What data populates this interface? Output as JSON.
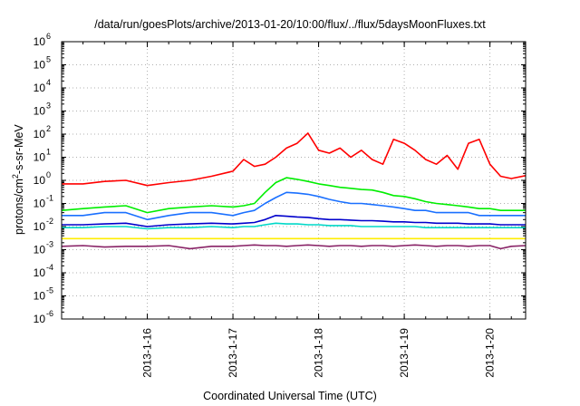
{
  "chart_data": {
    "type": "line",
    "title": "/data/run/goesPlots/archive/2013-01-20/10:00/flux/../flux/5daysMoonFluxes.txt",
    "xlabel": "Coordinated Universal Time (UTC)",
    "ylabel_prefix": "protons/cm",
    "ylabel_sup": "2",
    "ylabel_suffix": "-s-sr-MeV",
    "yscale": "log",
    "ylim": [
      1e-06,
      1000000.0
    ],
    "ytick_exponents": [
      -6,
      -5,
      -4,
      -3,
      -2,
      -1,
      0,
      1,
      2,
      3,
      4,
      5,
      6
    ],
    "ytick_base": "10",
    "xlim": [
      "2013-01-15T00:00",
      "2013-01-20T10:00"
    ],
    "xtick_labels": [
      "2013-1-16",
      "2013-1-17",
      "2013-1-18",
      "2013-1-19",
      "2013-1-20"
    ],
    "xtick_dates": [
      "2013-01-16T00:00",
      "2013-01-17T00:00",
      "2013-01-18T00:00",
      "2013-01-19T00:00",
      "2013-01-20T00:00"
    ],
    "grid": true,
    "x": [
      "2013-01-15T00:00",
      "2013-01-15T06:00",
      "2013-01-15T12:00",
      "2013-01-15T18:00",
      "2013-01-16T00:00",
      "2013-01-16T06:00",
      "2013-01-16T12:00",
      "2013-01-16T18:00",
      "2013-01-17T00:00",
      "2013-01-17T03:00",
      "2013-01-17T06:00",
      "2013-01-17T09:00",
      "2013-01-17T12:00",
      "2013-01-17T15:00",
      "2013-01-17T18:00",
      "2013-01-17T21:00",
      "2013-01-18T00:00",
      "2013-01-18T03:00",
      "2013-01-18T06:00",
      "2013-01-18T09:00",
      "2013-01-18T12:00",
      "2013-01-18T15:00",
      "2013-01-18T18:00",
      "2013-01-18T21:00",
      "2013-01-19T00:00",
      "2013-01-19T03:00",
      "2013-01-19T06:00",
      "2013-01-19T09:00",
      "2013-01-19T12:00",
      "2013-01-19T15:00",
      "2013-01-19T18:00",
      "2013-01-19T21:00",
      "2013-01-20T00:00",
      "2013-01-20T03:00",
      "2013-01-20T06:00",
      "2013-01-20T10:00"
    ],
    "series": [
      {
        "color": "#ff0000",
        "values": [
          0.7,
          0.7,
          0.9,
          1.0,
          0.6,
          0.8,
          1.0,
          1.5,
          2.5,
          8,
          4,
          5,
          10,
          25,
          40,
          110,
          20,
          15,
          25,
          10,
          20,
          8,
          5,
          60,
          40,
          20,
          8,
          5,
          12,
          3,
          40,
          60,
          5,
          1.5,
          1.2,
          1.6
        ]
      },
      {
        "color": "#00ee00",
        "values": [
          0.05,
          0.06,
          0.07,
          0.08,
          0.04,
          0.06,
          0.07,
          0.08,
          0.07,
          0.08,
          0.1,
          0.3,
          0.8,
          1.3,
          1.1,
          0.9,
          0.7,
          0.6,
          0.5,
          0.45,
          0.4,
          0.38,
          0.3,
          0.22,
          0.2,
          0.16,
          0.12,
          0.1,
          0.09,
          0.08,
          0.07,
          0.06,
          0.06,
          0.05,
          0.05,
          0.05
        ]
      },
      {
        "color": "#1a70ff",
        "values": [
          0.03,
          0.03,
          0.04,
          0.04,
          0.02,
          0.03,
          0.04,
          0.04,
          0.03,
          0.04,
          0.05,
          0.1,
          0.18,
          0.3,
          0.28,
          0.25,
          0.2,
          0.15,
          0.12,
          0.1,
          0.1,
          0.09,
          0.08,
          0.07,
          0.06,
          0.05,
          0.05,
          0.04,
          0.04,
          0.04,
          0.04,
          0.03,
          0.03,
          0.03,
          0.03,
          0.03
        ]
      },
      {
        "color": "#0000cc",
        "values": [
          0.012,
          0.012,
          0.013,
          0.014,
          0.01,
          0.012,
          0.013,
          0.014,
          0.013,
          0.014,
          0.015,
          0.02,
          0.03,
          0.028,
          0.026,
          0.025,
          0.022,
          0.02,
          0.02,
          0.019,
          0.018,
          0.018,
          0.017,
          0.016,
          0.016,
          0.015,
          0.015,
          0.014,
          0.014,
          0.014,
          0.013,
          0.013,
          0.013,
          0.012,
          0.012,
          0.012
        ]
      },
      {
        "color": "#00d8c8",
        "values": [
          0.009,
          0.009,
          0.01,
          0.01,
          0.008,
          0.009,
          0.009,
          0.01,
          0.009,
          0.01,
          0.01,
          0.012,
          0.014,
          0.013,
          0.013,
          0.012,
          0.012,
          0.011,
          0.011,
          0.011,
          0.01,
          0.01,
          0.01,
          0.01,
          0.01,
          0.01,
          0.009,
          0.009,
          0.009,
          0.009,
          0.009,
          0.009,
          0.009,
          0.009,
          0.009,
          0.009
        ]
      },
      {
        "color": "#ffee00",
        "values": [
          0.003,
          0.003,
          0.003,
          0.003,
          0.003,
          0.003,
          0.003,
          0.003,
          0.003,
          0.003,
          0.003,
          0.003,
          0.003,
          0.003,
          0.003,
          0.003,
          0.003,
          0.003,
          0.003,
          0.003,
          0.003,
          0.003,
          0.003,
          0.003,
          0.003,
          0.003,
          0.003,
          0.003,
          0.003,
          0.003,
          0.003,
          0.003,
          0.003,
          0.003,
          0.003,
          0.003
        ]
      },
      {
        "color": "#882266",
        "values": [
          0.0014,
          0.0015,
          0.0013,
          0.0014,
          0.0014,
          0.0015,
          0.0011,
          0.0014,
          0.0014,
          0.0015,
          0.0016,
          0.0015,
          0.0015,
          0.0014,
          0.0015,
          0.0016,
          0.0015,
          0.0014,
          0.0015,
          0.0015,
          0.0014,
          0.0015,
          0.0015,
          0.0014,
          0.0015,
          0.0016,
          0.0015,
          0.0014,
          0.0015,
          0.0015,
          0.0014,
          0.0015,
          0.0015,
          0.0011,
          0.0014,
          0.0015
        ]
      }
    ]
  }
}
